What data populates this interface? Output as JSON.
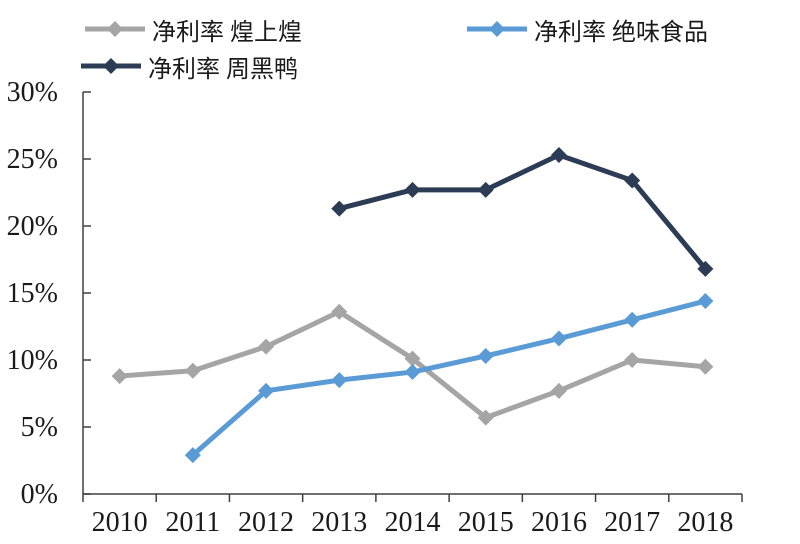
{
  "chart_data": {
    "type": "line",
    "title": "",
    "xlabel": "",
    "ylabel": "",
    "categories": [
      "2010",
      "2011",
      "2012",
      "2013",
      "2014",
      "2015",
      "2016",
      "2017",
      "2018"
    ],
    "series": [
      {
        "name": "净利率 煌上煌",
        "color": "#A5A5A5",
        "values": [
          8.8,
          9.2,
          11.0,
          13.6,
          10.1,
          5.7,
          7.7,
          10.0,
          9.5
        ]
      },
      {
        "name": "净利率 绝味食品",
        "color": "#5B9BD5",
        "values": [
          null,
          2.9,
          7.7,
          8.5,
          9.1,
          10.3,
          11.6,
          13.0,
          14.4
        ]
      },
      {
        "name": "净利率 周黑鸭",
        "color": "#2C3C55",
        "values": [
          null,
          null,
          null,
          21.3,
          22.7,
          22.7,
          25.3,
          23.4,
          16.8
        ]
      }
    ],
    "ylim": [
      0,
      30
    ],
    "y_tick_step": 5,
    "y_tick_labels": [
      "0%",
      "5%",
      "10%",
      "15%",
      "20%",
      "25%",
      "30%"
    ],
    "grid": false,
    "legend_position": "top",
    "marker": "diamond"
  },
  "colors": {
    "axis": "#404040",
    "tick_text": "#1a1a1a",
    "background": "#ffffff"
  }
}
